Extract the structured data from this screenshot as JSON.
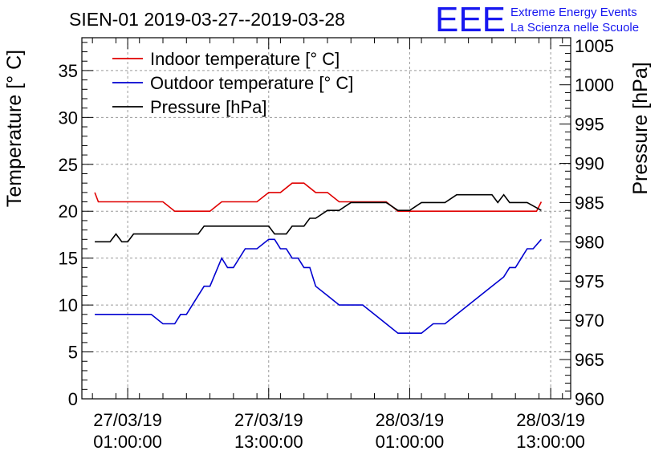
{
  "chart_data": {
    "type": "line",
    "title": "SIEN-01 2019-03-27--2019-03-28",
    "logo": {
      "mark": "EEE",
      "line1": "Extreme Energy Events",
      "line2": "La Scienza nelle Scuole"
    },
    "ylabel_left": "Temperature [° C]",
    "ylabel_right": "Pressure [hPa]",
    "ylim_left": [
      0,
      38.5
    ],
    "ylim_right": [
      960,
      1006
    ],
    "xlim_hours": [
      -2.9,
      38.7
    ],
    "left_ticks": [
      "0",
      "5",
      "10",
      "15",
      "20",
      "25",
      "30",
      "35"
    ],
    "right_ticks": [
      "960",
      "965",
      "970",
      "975",
      "980",
      "985",
      "990",
      "995",
      "1000",
      "1005"
    ],
    "x_ticks": [
      {
        "hour": 1,
        "date": "27/03/19",
        "time": "01:00:00"
      },
      {
        "hour": 13,
        "date": "27/03/19",
        "time": "13:00:00"
      },
      {
        "hour": 25,
        "date": "28/03/19",
        "time": "01:00:00"
      },
      {
        "hour": 37,
        "date": "28/03/19",
        "time": "13:00:00"
      }
    ],
    "grid": true,
    "legend_position": "top-left",
    "series": [
      {
        "name": "Indoor temperature [° C]",
        "color": "#e00000",
        "axis": "left",
        "x": [
          -1.8,
          -1.5,
          0,
          2,
          4,
          5,
          6,
          8,
          9,
          10,
          12,
          13,
          13.5,
          14,
          15,
          16,
          17,
          18,
          19,
          20,
          21,
          22,
          23,
          24,
          25,
          26,
          28,
          30,
          32,
          33,
          34,
          35,
          35.8,
          36.2
        ],
        "values": [
          22,
          21,
          21,
          21,
          21,
          20,
          20,
          20,
          21,
          21,
          21,
          22,
          22,
          22,
          23,
          23,
          22,
          22,
          21,
          21,
          21,
          21,
          21,
          20,
          20,
          20,
          20,
          20,
          20,
          20,
          20,
          20,
          20,
          21
        ]
      },
      {
        "name": "Outdoor temperature [° C]",
        "color": "#0000d0",
        "axis": "left",
        "x": [
          -1.8,
          0,
          2,
          3,
          4,
          5,
          5.5,
          6,
          6.5,
          7,
          7.5,
          8,
          9,
          9.5,
          10,
          11,
          11.5,
          12,
          13,
          13.5,
          14,
          14.5,
          15,
          15.5,
          16,
          16.5,
          17,
          18,
          19,
          20,
          21,
          22,
          23,
          24,
          25,
          26,
          27,
          28,
          29,
          30,
          31,
          32,
          33,
          33.5,
          34,
          34.5,
          35,
          35.5,
          36.2
        ],
        "values": [
          9,
          9,
          9,
          9,
          8,
          8,
          9,
          9,
          10,
          11,
          12,
          12,
          15,
          14,
          14,
          16,
          16,
          16,
          17,
          17,
          16,
          16,
          15,
          15,
          14,
          14,
          12,
          11,
          10,
          10,
          10,
          9,
          8,
          7,
          7,
          7,
          8,
          8,
          9,
          10,
          11,
          12,
          13,
          14,
          14,
          15,
          16,
          16,
          17
        ]
      },
      {
        "name": "Pressure [hPa]",
        "color": "#000000",
        "axis": "right",
        "x": [
          -1.8,
          -0.5,
          0,
          0.5,
          1,
          1.5,
          2,
          3,
          4,
          5,
          6,
          7,
          7.5,
          8,
          9,
          10,
          11,
          12,
          13,
          13.5,
          14,
          14.5,
          15,
          15.5,
          16,
          16.5,
          17,
          18,
          18.5,
          19,
          20,
          21,
          22,
          23,
          24,
          25,
          26,
          27,
          28,
          29,
          30,
          31,
          32,
          32.5,
          33,
          33.5,
          34,
          35,
          36.2
        ],
        "values": [
          980,
          980,
          981,
          980,
          980,
          981,
          981,
          981,
          981,
          981,
          981,
          981,
          982,
          982,
          982,
          982,
          982,
          982,
          982,
          981,
          981,
          981,
          982,
          982,
          982,
          983,
          983,
          984,
          984,
          984,
          985,
          985,
          985,
          985,
          984,
          984,
          985,
          985,
          985,
          986,
          986,
          986,
          986,
          985,
          986,
          985,
          985,
          985,
          984
        ]
      }
    ]
  }
}
